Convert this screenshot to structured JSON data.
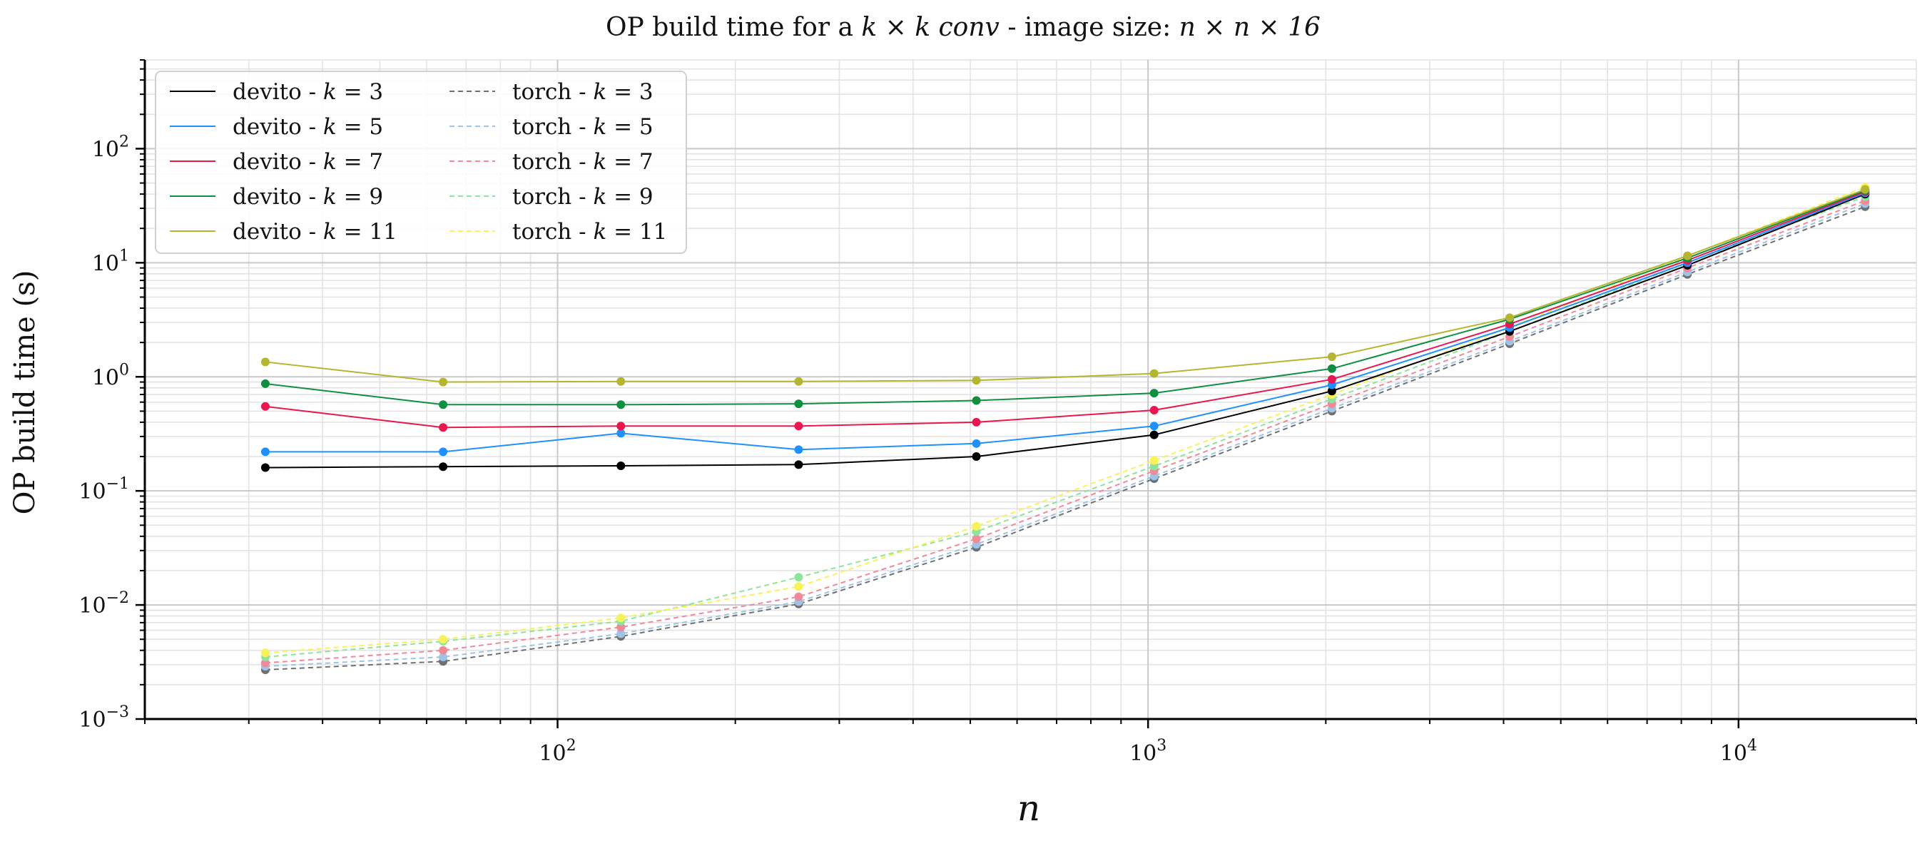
{
  "chart_data": {
    "type": "line",
    "title_parts": [
      "OP build time for a ",
      "k × k conv",
      " - image size: ",
      "n × n × 16"
    ],
    "xlabel": "n",
    "ylabel": "OP build time (s)",
    "xscale": "log",
    "yscale": "log",
    "xlim": [
      20,
      20000
    ],
    "ylim": [
      0.001,
      600
    ],
    "grid": true,
    "legend_position": "top-left",
    "legend_columns": 2,
    "x_tick_labels": [
      {
        "value": 100,
        "base": "10",
        "exp": "2"
      },
      {
        "value": 1000,
        "base": "10",
        "exp": "3"
      },
      {
        "value": 10000,
        "base": "10",
        "exp": "4"
      }
    ],
    "y_tick_labels": [
      {
        "value": 0.001,
        "base": "10",
        "exp": "−3"
      },
      {
        "value": 0.01,
        "base": "10",
        "exp": "−2"
      },
      {
        "value": 0.1,
        "base": "10",
        "exp": "−1"
      },
      {
        "value": 1,
        "base": "10",
        "exp": "0"
      },
      {
        "value": 10,
        "base": "10",
        "exp": "1"
      },
      {
        "value": 100,
        "base": "10",
        "exp": "2"
      }
    ],
    "x": [
      32,
      64,
      128,
      256,
      512,
      1024,
      2048,
      4096,
      8192,
      16384
    ],
    "series": [
      {
        "name": "devito - k = 3",
        "label_prefix": "devito - ",
        "k": "3",
        "color": "#000000",
        "dashed": false,
        "values": [
          0.16,
          0.163,
          0.166,
          0.17,
          0.2,
          0.31,
          0.75,
          2.5,
          9.5,
          40
        ]
      },
      {
        "name": "devito - k = 5",
        "label_prefix": "devito - ",
        "k": "5",
        "color": "#1E90FF",
        "dashed": false,
        "values": [
          0.22,
          0.22,
          0.32,
          0.23,
          0.26,
          0.37,
          0.85,
          2.7,
          10,
          41
        ]
      },
      {
        "name": "devito - k = 7",
        "label_prefix": "devito - ",
        "k": "7",
        "color": "#E8174F",
        "dashed": false,
        "values": [
          0.55,
          0.36,
          0.37,
          0.37,
          0.4,
          0.51,
          0.95,
          2.9,
          10.5,
          42
        ]
      },
      {
        "name": "devito - k = 9",
        "label_prefix": "devito - ",
        "k": "9",
        "color": "#0F8F3F",
        "dashed": false,
        "values": [
          0.87,
          0.57,
          0.57,
          0.58,
          0.62,
          0.72,
          1.18,
          3.2,
          11,
          43
        ]
      },
      {
        "name": "devito - k = 11",
        "label_prefix": "devito - ",
        "k": "11",
        "color": "#B5B530",
        "dashed": false,
        "values": [
          1.35,
          0.9,
          0.91,
          0.91,
          0.93,
          1.07,
          1.5,
          3.3,
          11.5,
          44
        ]
      },
      {
        "name": "torch - k = 3",
        "label_prefix": "torch - ",
        "k": "3",
        "color": "#707070",
        "dashed": true,
        "values": [
          0.0027,
          0.0032,
          0.0053,
          0.0102,
          0.032,
          0.128,
          0.5,
          1.95,
          7.9,
          31
        ]
      },
      {
        "name": "torch - k = 5",
        "label_prefix": "torch - ",
        "k": "5",
        "color": "#9FC3E6",
        "dashed": true,
        "values": [
          0.0029,
          0.0035,
          0.0056,
          0.0107,
          0.034,
          0.135,
          0.53,
          2.05,
          8.3,
          33
        ]
      },
      {
        "name": "torch - k = 7",
        "label_prefix": "torch - ",
        "k": "7",
        "color": "#F08A9A",
        "dashed": true,
        "values": [
          0.0031,
          0.004,
          0.0064,
          0.0118,
          0.038,
          0.15,
          0.58,
          2.25,
          9,
          35
        ]
      },
      {
        "name": "torch - k = 9",
        "label_prefix": "torch - ",
        "k": "9",
        "color": "#8FE39C",
        "dashed": true,
        "values": [
          0.0035,
          0.0048,
          0.0072,
          0.0175,
          0.044,
          0.165,
          0.64,
          2.5,
          10,
          38
        ]
      },
      {
        "name": "torch - k = 11",
        "label_prefix": "torch - ",
        "k": "11",
        "color": "#F7F25A",
        "dashed": true,
        "values": [
          0.0038,
          0.005,
          0.0077,
          0.0145,
          0.049,
          0.185,
          0.7,
          2.7,
          11.5,
          46
        ]
      }
    ]
  }
}
